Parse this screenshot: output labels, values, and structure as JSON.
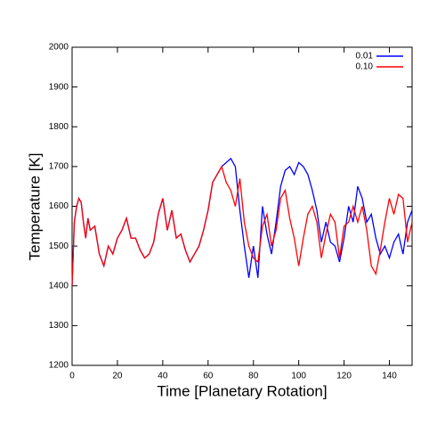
{
  "chart_data": {
    "type": "line",
    "xlabel": "Time [Planetary Rotation]",
    "ylabel": "Temperature [K]",
    "x": [
      0,
      1,
      2,
      3,
      4,
      5,
      6,
      7,
      8,
      10,
      12,
      14,
      16,
      18,
      20,
      22,
      24,
      26,
      28,
      30,
      32,
      34,
      36,
      38,
      40,
      42,
      44,
      46,
      48,
      50,
      52,
      54,
      56,
      58,
      60,
      62,
      64,
      66,
      68,
      70,
      72,
      74,
      76,
      78,
      80,
      82,
      84,
      86,
      88,
      90,
      92,
      94,
      96,
      98,
      100,
      102,
      104,
      106,
      108,
      110,
      112,
      114,
      116,
      118,
      120,
      122,
      124,
      126,
      128,
      130,
      132,
      134,
      136,
      138,
      140,
      142,
      144,
      146,
      148,
      150
    ],
    "series": [
      {
        "name": "0.01",
        "color": "#0000ff",
        "values": [
          1400,
          1560,
          1600,
          1620,
          1610,
          1560,
          1520,
          1570,
          1540,
          1550,
          1480,
          1450,
          1500,
          1480,
          1520,
          1540,
          1570,
          1520,
          1520,
          1490,
          1470,
          1480,
          1510,
          1580,
          1620,
          1540,
          1590,
          1520,
          1530,
          1490,
          1460,
          1480,
          1500,
          1540,
          1590,
          1660,
          1680,
          1700,
          1710,
          1720,
          1700,
          1590,
          1500,
          1420,
          1500,
          1420,
          1600,
          1530,
          1480,
          1560,
          1650,
          1690,
          1700,
          1680,
          1710,
          1700,
          1680,
          1640,
          1590,
          1510,
          1560,
          1510,
          1500,
          1460,
          1520,
          1600,
          1560,
          1650,
          1620,
          1560,
          1580,
          1520,
          1480,
          1500,
          1470,
          1510,
          1530,
          1480,
          1560,
          1590
        ]
      },
      {
        "name": "0.10",
        "color": "#ff0000",
        "values": [
          1400,
          1560,
          1600,
          1620,
          1610,
          1560,
          1520,
          1570,
          1540,
          1550,
          1480,
          1450,
          1500,
          1480,
          1520,
          1540,
          1570,
          1520,
          1520,
          1490,
          1470,
          1480,
          1510,
          1580,
          1620,
          1540,
          1590,
          1520,
          1530,
          1490,
          1460,
          1480,
          1500,
          1540,
          1590,
          1660,
          1680,
          1700,
          1660,
          1640,
          1600,
          1670,
          1560,
          1500,
          1470,
          1460,
          1550,
          1580,
          1500,
          1540,
          1620,
          1640,
          1570,
          1520,
          1450,
          1520,
          1580,
          1600,
          1560,
          1470,
          1530,
          1580,
          1560,
          1470,
          1550,
          1560,
          1600,
          1560,
          1600,
          1540,
          1450,
          1430,
          1490,
          1560,
          1620,
          1580,
          1630,
          1620,
          1510,
          1560
        ]
      }
    ],
    "xlim": [
      0,
      150
    ],
    "xticks": [
      0,
      20,
      40,
      60,
      80,
      100,
      120,
      140
    ],
    "ylim": [
      1200,
      2000
    ],
    "yticks": [
      1200,
      1300,
      1400,
      1500,
      1600,
      1700,
      1800,
      1900,
      2000
    ],
    "legend": "top-right"
  }
}
